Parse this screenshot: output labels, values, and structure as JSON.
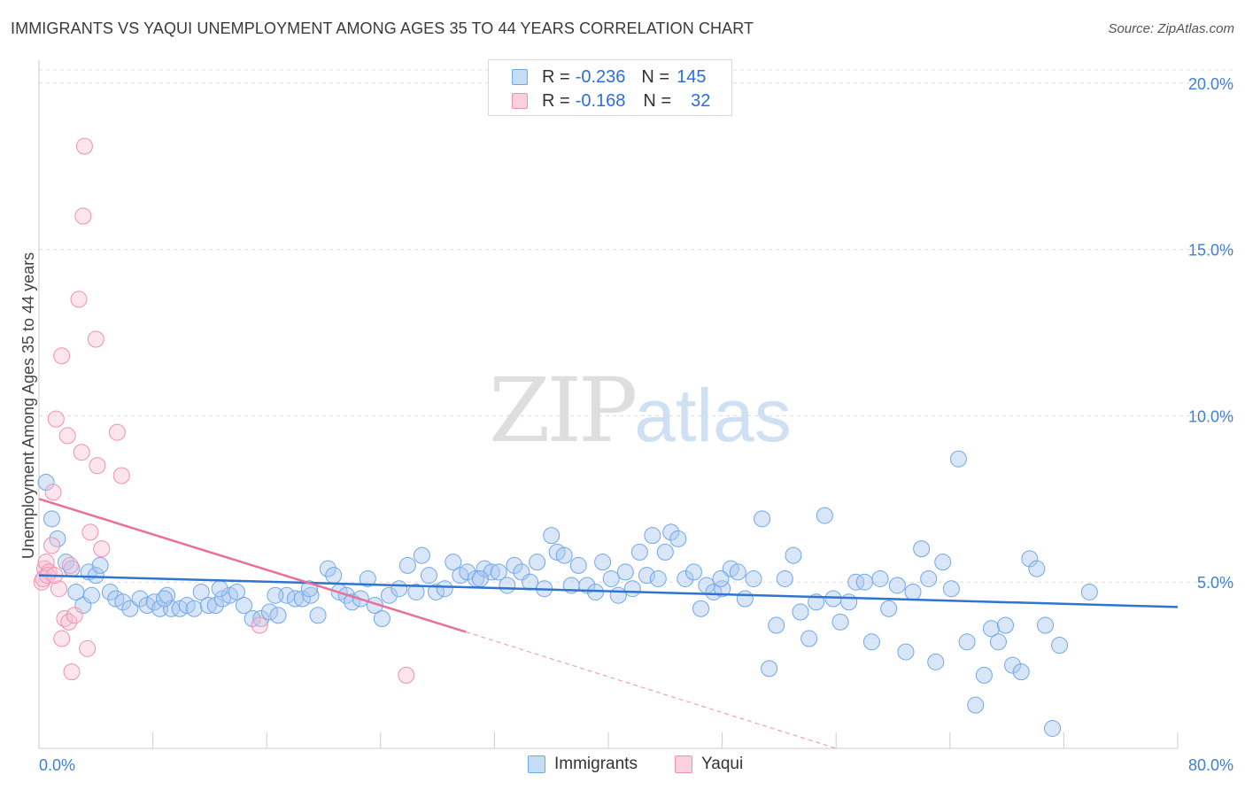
{
  "title": "IMMIGRANTS VS YAQUI UNEMPLOYMENT AMONG AGES 35 TO 44 YEARS CORRELATION CHART",
  "source": "Source: ZipAtlas.com",
  "watermark": {
    "zip": "ZIP",
    "atlas": "atlas"
  },
  "legend_top": [
    {
      "r_label": "R =",
      "r_value": "-0.236",
      "n_label": "N =",
      "n_value": "145",
      "color": "#6fa8e8"
    },
    {
      "r_label": "R =",
      "r_value": "-0.168",
      "n_label": "N =",
      "n_value": "32",
      "color": "#f090b0"
    }
  ],
  "chart_data": {
    "type": "scatter",
    "title": "IMMIGRANTS VS YAQUI UNEMPLOYMENT AMONG AGES 35 TO 44 YEARS CORRELATION CHART",
    "xlabel": "",
    "ylabel": "Unemployment Among Ages 35 to 44 years",
    "xlim": [
      0,
      80
    ],
    "ylim": [
      0,
      20.5
    ],
    "x_tick_labels": [
      "0.0%",
      "80.0%"
    ],
    "y_ticks": [
      5,
      10,
      15,
      20
    ],
    "y_tick_labels": [
      "5.0%",
      "10.0%",
      "15.0%",
      "20.0%"
    ],
    "grid": "horizontal dashed",
    "legend": "bottom",
    "series": [
      {
        "name": "Immigrants",
        "color": "#6fa8e8",
        "trend": {
          "x": [
            0,
            80
          ],
          "y": [
            5.2,
            4.25
          ]
        },
        "points": [
          [
            0.5,
            8.0
          ],
          [
            0.9,
            6.9
          ],
          [
            1.3,
            6.3
          ],
          [
            1.9,
            5.6
          ],
          [
            2.3,
            5.4
          ],
          [
            2.6,
            4.7
          ],
          [
            3.1,
            4.3
          ],
          [
            3.5,
            5.3
          ],
          [
            3.7,
            4.6
          ],
          [
            4.0,
            5.2
          ],
          [
            4.3,
            5.5
          ],
          [
            5.0,
            4.7
          ],
          [
            5.4,
            4.5
          ],
          [
            5.9,
            4.4
          ],
          [
            6.4,
            4.2
          ],
          [
            7.1,
            4.5
          ],
          [
            7.6,
            4.3
          ],
          [
            8.1,
            4.4
          ],
          [
            8.5,
            4.2
          ],
          [
            9.0,
            4.6
          ],
          [
            9.3,
            4.2
          ],
          [
            9.9,
            4.2
          ],
          [
            10.4,
            4.3
          ],
          [
            10.9,
            4.2
          ],
          [
            11.4,
            4.7
          ],
          [
            11.9,
            4.3
          ],
          [
            12.4,
            4.3
          ],
          [
            12.9,
            4.5
          ],
          [
            13.4,
            4.6
          ],
          [
            13.9,
            4.7
          ],
          [
            14.4,
            4.3
          ],
          [
            15.0,
            3.9
          ],
          [
            15.6,
            3.9
          ],
          [
            16.2,
            4.1
          ],
          [
            16.8,
            4.0
          ],
          [
            17.4,
            4.6
          ],
          [
            18.0,
            4.5
          ],
          [
            18.5,
            4.5
          ],
          [
            19.1,
            4.6
          ],
          [
            19.6,
            4.0
          ],
          [
            20.3,
            5.4
          ],
          [
            20.7,
            5.2
          ],
          [
            21.1,
            4.7
          ],
          [
            21.6,
            4.6
          ],
          [
            22.0,
            4.4
          ],
          [
            22.6,
            4.5
          ],
          [
            23.1,
            5.1
          ],
          [
            23.6,
            4.3
          ],
          [
            24.1,
            3.9
          ],
          [
            24.6,
            4.6
          ],
          [
            25.3,
            4.8
          ],
          [
            25.9,
            5.5
          ],
          [
            26.5,
            4.7
          ],
          [
            26.9,
            5.8
          ],
          [
            27.4,
            5.2
          ],
          [
            27.9,
            4.7
          ],
          [
            28.5,
            4.8
          ],
          [
            29.1,
            5.6
          ],
          [
            29.6,
            5.2
          ],
          [
            30.1,
            5.3
          ],
          [
            30.7,
            5.1
          ],
          [
            31.3,
            5.4
          ],
          [
            31.8,
            5.3
          ],
          [
            32.3,
            5.3
          ],
          [
            32.9,
            4.9
          ],
          [
            33.4,
            5.5
          ],
          [
            33.9,
            5.3
          ],
          [
            34.5,
            5.0
          ],
          [
            35.0,
            5.6
          ],
          [
            35.5,
            4.8
          ],
          [
            36.0,
            6.4
          ],
          [
            36.4,
            5.9
          ],
          [
            36.9,
            5.8
          ],
          [
            37.4,
            4.9
          ],
          [
            37.9,
            5.5
          ],
          [
            38.5,
            4.9
          ],
          [
            39.1,
            4.7
          ],
          [
            39.6,
            5.6
          ],
          [
            40.2,
            5.1
          ],
          [
            40.7,
            4.6
          ],
          [
            41.2,
            5.3
          ],
          [
            41.7,
            4.8
          ],
          [
            42.2,
            5.9
          ],
          [
            42.7,
            5.2
          ],
          [
            43.1,
            6.4
          ],
          [
            43.5,
            5.1
          ],
          [
            44.0,
            5.9
          ],
          [
            44.4,
            6.5
          ],
          [
            44.9,
            6.3
          ],
          [
            45.4,
            5.1
          ],
          [
            46.0,
            5.3
          ],
          [
            46.5,
            4.2
          ],
          [
            46.9,
            4.9
          ],
          [
            47.4,
            4.7
          ],
          [
            48.0,
            4.8
          ],
          [
            48.6,
            5.4
          ],
          [
            49.1,
            5.3
          ],
          [
            49.6,
            4.5
          ],
          [
            50.2,
            5.1
          ],
          [
            50.8,
            6.9
          ],
          [
            51.3,
            2.4
          ],
          [
            51.8,
            3.7
          ],
          [
            52.4,
            5.1
          ],
          [
            53.0,
            5.8
          ],
          [
            53.5,
            4.1
          ],
          [
            54.1,
            3.3
          ],
          [
            54.6,
            4.4
          ],
          [
            55.2,
            7.0
          ],
          [
            55.8,
            4.5
          ],
          [
            56.3,
            3.8
          ],
          [
            56.9,
            4.4
          ],
          [
            57.4,
            5.0
          ],
          [
            58.0,
            5.0
          ],
          [
            58.5,
            3.2
          ],
          [
            59.1,
            5.1
          ],
          [
            59.7,
            4.2
          ],
          [
            60.3,
            4.9
          ],
          [
            60.9,
            2.9
          ],
          [
            61.4,
            4.7
          ],
          [
            62.0,
            6.0
          ],
          [
            62.5,
            5.1
          ],
          [
            63.0,
            2.6
          ],
          [
            63.5,
            5.6
          ],
          [
            64.1,
            4.8
          ],
          [
            64.6,
            8.7
          ],
          [
            65.2,
            3.2
          ],
          [
            65.8,
            1.3
          ],
          [
            66.4,
            2.2
          ],
          [
            66.9,
            3.6
          ],
          [
            67.4,
            3.2
          ],
          [
            67.9,
            3.7
          ],
          [
            68.4,
            2.5
          ],
          [
            69.0,
            2.3
          ],
          [
            69.6,
            5.7
          ],
          [
            70.1,
            5.4
          ],
          [
            70.7,
            3.7
          ],
          [
            71.2,
            0.6
          ],
          [
            71.7,
            3.1
          ],
          [
            73.8,
            4.7
          ],
          [
            12.7,
            4.8
          ],
          [
            19.0,
            4.8
          ],
          [
            16.6,
            4.6
          ],
          [
            8.8,
            4.5
          ],
          [
            31.0,
            5.1
          ],
          [
            47.9,
            5.1
          ]
        ]
      },
      {
        "name": "Yaqui",
        "color": "#f090b0",
        "trend": {
          "x": [
            0,
            30
          ],
          "y": [
            7.5,
            3.5
          ]
        },
        "trend_ext": {
          "x": [
            30,
            56
          ],
          "y": [
            3.5,
            0
          ]
        },
        "points": [
          [
            0.2,
            5.0
          ],
          [
            0.4,
            5.4
          ],
          [
            0.5,
            5.6
          ],
          [
            0.7,
            5.3
          ],
          [
            0.9,
            6.1
          ],
          [
            1.0,
            7.7
          ],
          [
            1.2,
            9.9
          ],
          [
            1.4,
            4.8
          ],
          [
            1.6,
            11.8
          ],
          [
            1.8,
            3.9
          ],
          [
            1.6,
            3.3
          ],
          [
            2.0,
            9.4
          ],
          [
            2.1,
            3.8
          ],
          [
            2.3,
            2.3
          ],
          [
            2.5,
            4.0
          ],
          [
            2.8,
            13.5
          ],
          [
            3.0,
            8.9
          ],
          [
            3.1,
            16.0
          ],
          [
            3.2,
            18.1
          ],
          [
            3.4,
            3.0
          ],
          [
            3.6,
            6.5
          ],
          [
            4.0,
            12.3
          ],
          [
            4.1,
            8.5
          ],
          [
            4.4,
            6.0
          ],
          [
            5.5,
            9.5
          ],
          [
            5.8,
            8.2
          ],
          [
            15.5,
            3.7
          ],
          [
            25.8,
            2.2
          ],
          [
            0.3,
            5.1
          ],
          [
            0.6,
            5.2
          ],
          [
            2.2,
            5.5
          ],
          [
            1.1,
            5.2
          ]
        ]
      }
    ]
  }
}
